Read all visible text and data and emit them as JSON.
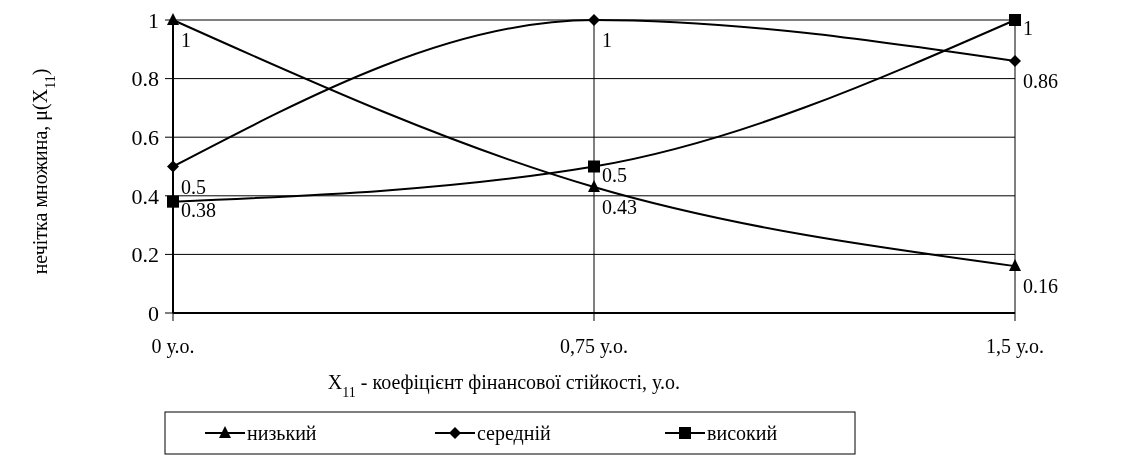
{
  "chart_data": {
    "type": "line",
    "xlabel": "X$_{11}$ - коефіцієнт фінансової стійкості, у.о.",
    "ylabel": "нечітка множина, μ(X$_{11}$)",
    "categories": [
      "0 у.о.",
      "0,75 у.о.",
      "1,5 у.о."
    ],
    "series": [
      {
        "name": "низький",
        "color": "#000000",
        "marker": "triangle",
        "values": [
          1,
          0.43,
          0.16
        ]
      },
      {
        "name": "середній",
        "color": "#000000",
        "marker": "diamond",
        "values": [
          0.5,
          1,
          0.86
        ]
      },
      {
        "name": "високий",
        "color": "#000000",
        "marker": "square",
        "values": [
          0.38,
          0.5,
          1
        ]
      }
    ],
    "ylim": [
      0,
      1
    ],
    "yticks": [
      0,
      0.2,
      0.4,
      0.6,
      0.8,
      1
    ],
    "grid": true,
    "legend": "bottom",
    "data_labels": true
  }
}
